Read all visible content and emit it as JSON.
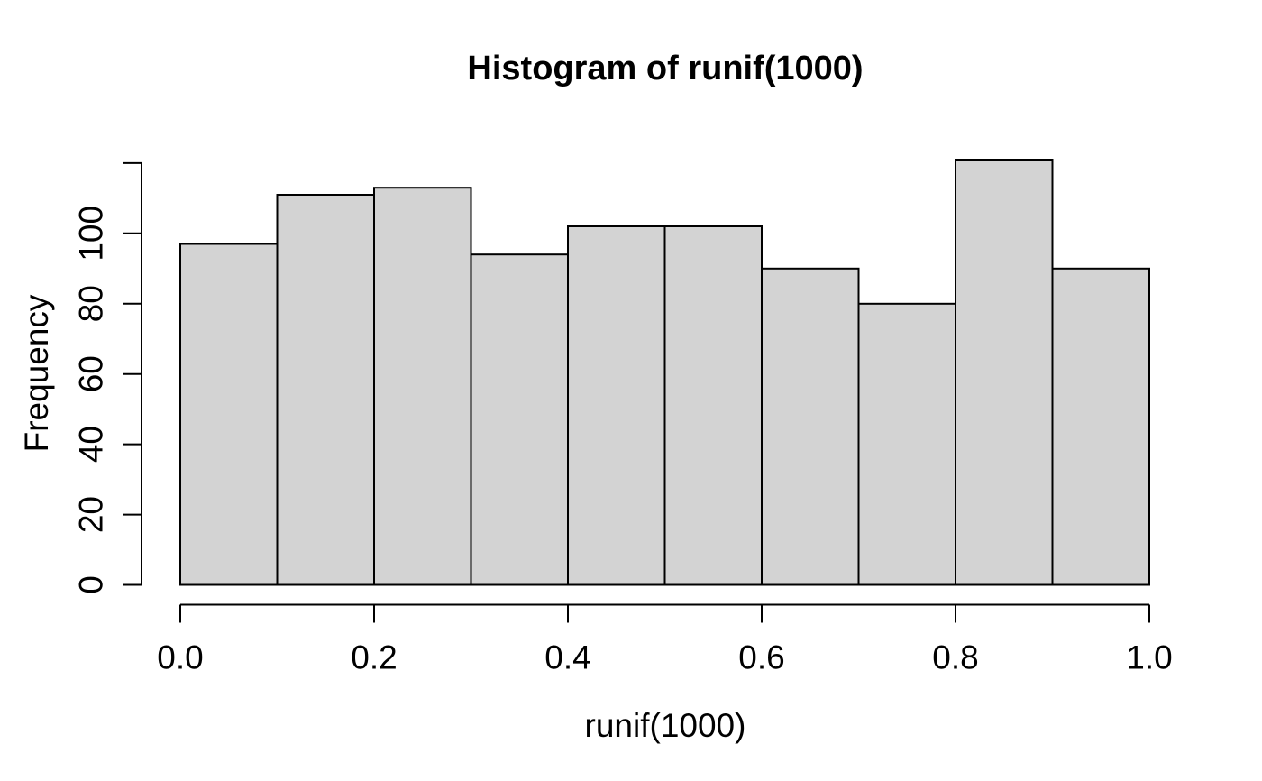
{
  "page": {
    "background": "#ffffff"
  },
  "chart_data": {
    "type": "bar",
    "subtype": "histogram",
    "title": "Histogram of runif(1000)",
    "xlabel": "runif(1000)",
    "ylabel": "Frequency",
    "total_n": 1000,
    "bin_edges": [
      0.0,
      0.1,
      0.2,
      0.3,
      0.4,
      0.5,
      0.6,
      0.7,
      0.8,
      0.9,
      1.0
    ],
    "counts": [
      97,
      111,
      113,
      94,
      102,
      102,
      90,
      80,
      121,
      90
    ],
    "xlim": [
      0.0,
      1.0
    ],
    "ylim": [
      0,
      120
    ],
    "grid": false,
    "legend": null,
    "x_axis_ticks": [
      {
        "value": 0.0,
        "label": "0.0"
      },
      {
        "value": 0.2,
        "label": "0.2"
      },
      {
        "value": 0.4,
        "label": "0.4"
      },
      {
        "value": 0.6,
        "label": "0.6"
      },
      {
        "value": 0.8,
        "label": "0.8"
      },
      {
        "value": 1.0,
        "label": "1.0"
      }
    ],
    "y_axis_ticks": [
      {
        "value": 0,
        "label": "0"
      },
      {
        "value": 20,
        "label": "20"
      },
      {
        "value": 40,
        "label": "40"
      },
      {
        "value": 60,
        "label": "60"
      },
      {
        "value": 80,
        "label": "80"
      },
      {
        "value": 100,
        "label": "100"
      },
      {
        "value": 120,
        "label": ""
      }
    ],
    "colors": {
      "bar_fill": "#d3d3d3",
      "bar_stroke": "#000000",
      "axis": "#000000",
      "text": "#000000",
      "background": "#ffffff"
    }
  }
}
